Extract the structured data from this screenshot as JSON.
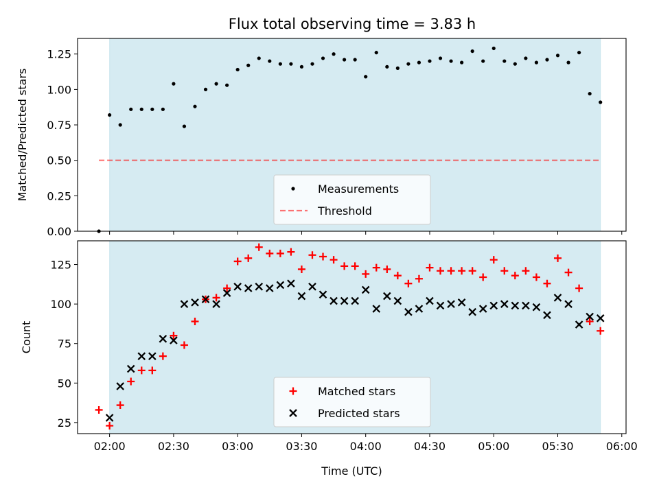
{
  "title": "Flux total observing time = 3.83 h",
  "colors": {
    "shade": "#add8e6",
    "threshold": "#ff0000",
    "measurement": "#000000",
    "matched": "#ff0000",
    "predicted": "#000000"
  },
  "chart_data": [
    {
      "type": "scatter",
      "ylabel": "Matched/Predicted stars",
      "xlabel": "",
      "xlim": [
        "01:45",
        "06:02"
      ],
      "ylim": [
        0.0,
        1.36
      ],
      "yticks": [
        "0.00",
        "0.25",
        "0.50",
        "0.75",
        "1.00",
        "1.25"
      ],
      "shaded_span": [
        "02:00",
        "05:50"
      ],
      "threshold": {
        "name": "Threshold",
        "value": 0.5,
        "x_range": [
          "01:55",
          "05:50"
        ],
        "style": "dashed"
      },
      "legend_position": "lower center",
      "series": [
        {
          "name": "Measurements",
          "marker": "dot",
          "x": [
            "01:55",
            "02:00",
            "02:05",
            "02:10",
            "02:15",
            "02:20",
            "02:25",
            "02:30",
            "02:35",
            "02:40",
            "02:45",
            "02:50",
            "02:55",
            "03:00",
            "03:05",
            "03:10",
            "03:15",
            "03:20",
            "03:25",
            "03:30",
            "03:35",
            "03:40",
            "03:45",
            "03:50",
            "03:55",
            "04:00",
            "04:05",
            "04:10",
            "04:15",
            "04:20",
            "04:25",
            "04:30",
            "04:35",
            "04:40",
            "04:45",
            "04:50",
            "04:55",
            "05:00",
            "05:05",
            "05:10",
            "05:15",
            "05:20",
            "05:25",
            "05:30",
            "05:35",
            "05:40",
            "05:45",
            "05:50"
          ],
          "y": [
            0.0,
            0.82,
            0.75,
            0.86,
            0.86,
            0.86,
            0.86,
            1.04,
            0.74,
            0.88,
            1.0,
            1.04,
            1.03,
            1.14,
            1.17,
            1.22,
            1.2,
            1.18,
            1.18,
            1.16,
            1.18,
            1.22,
            1.25,
            1.21,
            1.21,
            1.09,
            1.26,
            1.16,
            1.15,
            1.18,
            1.19,
            1.2,
            1.22,
            1.2,
            1.19,
            1.27,
            1.2,
            1.29,
            1.2,
            1.18,
            1.22,
            1.19,
            1.21,
            1.24,
            1.19,
            1.26,
            0.97,
            0.91
          ]
        }
      ]
    },
    {
      "type": "scatter",
      "ylabel": "Count",
      "xlabel": "Time (UTC)",
      "xlim": [
        "01:45",
        "06:02"
      ],
      "ylim": [
        18,
        140
      ],
      "yticks": [
        "25",
        "50",
        "75",
        "100",
        "125"
      ],
      "xticks": [
        "02:00",
        "02:30",
        "03:00",
        "03:30",
        "04:00",
        "04:30",
        "05:00",
        "05:30",
        "06:00"
      ],
      "shaded_span": [
        "02:00",
        "05:50"
      ],
      "legend_position": "lower center",
      "series": [
        {
          "name": "Matched stars",
          "marker": "plus",
          "x": [
            "01:55",
            "02:00",
            "02:05",
            "02:10",
            "02:15",
            "02:20",
            "02:25",
            "02:30",
            "02:35",
            "02:40",
            "02:45",
            "02:50",
            "02:55",
            "03:00",
            "03:05",
            "03:10",
            "03:15",
            "03:20",
            "03:25",
            "03:30",
            "03:35",
            "03:40",
            "03:45",
            "03:50",
            "03:55",
            "04:00",
            "04:05",
            "04:10",
            "04:15",
            "04:20",
            "04:25",
            "04:30",
            "04:35",
            "04:40",
            "04:45",
            "04:50",
            "04:55",
            "05:00",
            "05:05",
            "05:10",
            "05:15",
            "05:20",
            "05:25",
            "05:30",
            "05:35",
            "05:40",
            "05:45",
            "05:50"
          ],
          "y": [
            33,
            23,
            36,
            51,
            58,
            58,
            67,
            80,
            74,
            89,
            103,
            104,
            110,
            127,
            129,
            136,
            132,
            132,
            133,
            122,
            131,
            130,
            128,
            124,
            124,
            119,
            123,
            122,
            118,
            113,
            116,
            123,
            121,
            121,
            121,
            121,
            117,
            128,
            121,
            118,
            121,
            117,
            113,
            129,
            120,
            110,
            89,
            83
          ]
        },
        {
          "name": "Predicted stars",
          "marker": "x",
          "x": [
            "02:00",
            "02:05",
            "02:10",
            "02:15",
            "02:20",
            "02:25",
            "02:30",
            "02:35",
            "02:40",
            "02:45",
            "02:50",
            "02:55",
            "03:00",
            "03:05",
            "03:10",
            "03:15",
            "03:20",
            "03:25",
            "03:30",
            "03:35",
            "03:40",
            "03:45",
            "03:50",
            "03:55",
            "04:00",
            "04:05",
            "04:10",
            "04:15",
            "04:20",
            "04:25",
            "04:30",
            "04:35",
            "04:40",
            "04:45",
            "04:50",
            "04:55",
            "05:00",
            "05:05",
            "05:10",
            "05:15",
            "05:20",
            "05:25",
            "05:30",
            "05:35",
            "05:40",
            "05:45",
            "05:50"
          ],
          "y": [
            28,
            48,
            59,
            67,
            67,
            78,
            77,
            100,
            101,
            103,
            100,
            107,
            111,
            110,
            111,
            110,
            112,
            113,
            105,
            111,
            106,
            102,
            102,
            102,
            109,
            97,
            105,
            102,
            95,
            97,
            102,
            99,
            100,
            101,
            95,
            97,
            99,
            100,
            99,
            99,
            98,
            93,
            104,
            100,
            87,
            92,
            91
          ]
        }
      ]
    }
  ]
}
